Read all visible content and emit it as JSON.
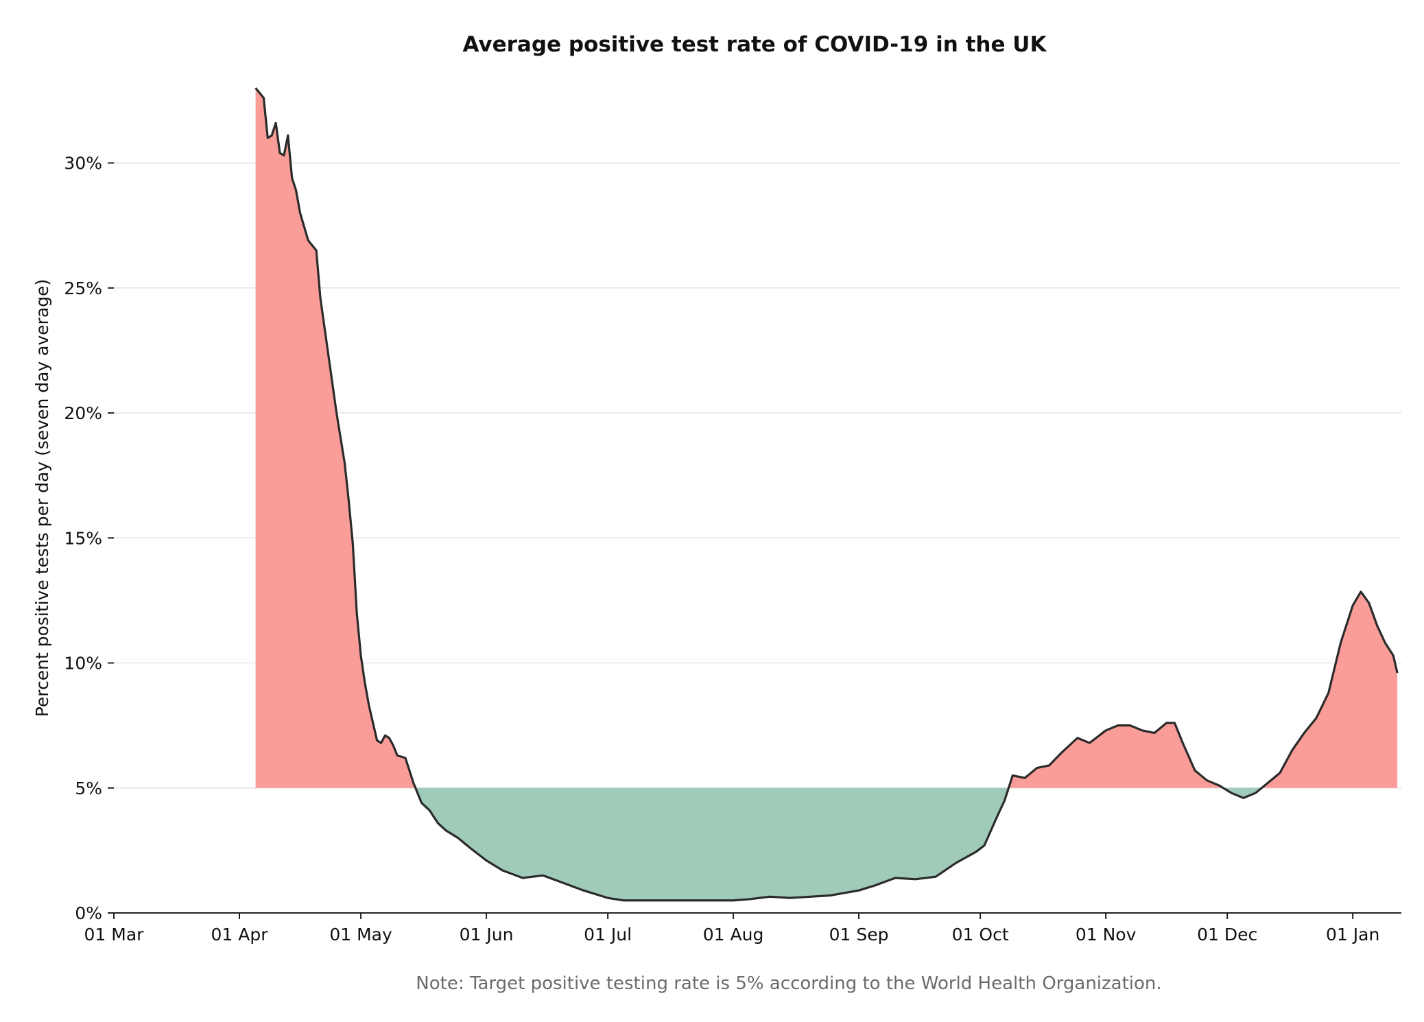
{
  "chart_data": {
    "type": "area",
    "title": "Average positive test rate of COVID-19 in the UK",
    "xlabel": "",
    "ylabel": "Percent positive tests per day (seven day average)",
    "note": "Note: Target positive testing rate is 5% according to the World Health Organization.",
    "threshold": 5,
    "ylim": [
      0,
      33.5
    ],
    "y_ticks": [
      0,
      5,
      10,
      15,
      20,
      25,
      30
    ],
    "y_tick_labels": [
      "0%",
      "5%",
      "10%",
      "15%",
      "20%",
      "25%",
      "30%"
    ],
    "x_ticks": [
      "2020-03-01",
      "2020-04-01",
      "2020-05-01",
      "2020-06-01",
      "2020-07-01",
      "2020-08-01",
      "2020-09-01",
      "2020-10-01",
      "2020-11-01",
      "2020-12-01",
      "2021-01-01"
    ],
    "x_tick_labels": [
      "01 Mar",
      "01 Apr",
      "01 May",
      "01 Jun",
      "01 Jul",
      "01 Aug",
      "01 Sep",
      "01 Oct",
      "01 Nov",
      "01 Dec",
      "01 Jan"
    ],
    "xlim": [
      "2020-03-01",
      "2021-01-13"
    ],
    "grid": "horizontal",
    "colors": {
      "above_threshold": "#fa9d99",
      "below_threshold": "#a0cbb8",
      "line": "#2b2b2b",
      "grid": "#e3e3e3"
    },
    "series": [
      {
        "x": [
          "2020-04-05",
          "2020-04-07",
          "2020-04-08",
          "2020-04-09",
          "2020-04-10",
          "2020-04-11",
          "2020-04-12",
          "2020-04-13",
          "2020-04-14",
          "2020-04-15",
          "2020-04-16",
          "2020-04-18",
          "2020-04-20",
          "2020-04-21",
          "2020-04-23",
          "2020-04-25",
          "2020-04-27",
          "2020-04-28",
          "2020-04-29",
          "2020-04-30",
          "2020-05-01",
          "2020-05-02",
          "2020-05-03",
          "2020-05-04",
          "2020-05-05",
          "2020-05-06",
          "2020-05-07",
          "2020-05-08",
          "2020-05-09",
          "2020-05-10",
          "2020-05-12",
          "2020-05-14",
          "2020-05-16",
          "2020-05-18",
          "2020-05-20",
          "2020-05-22",
          "2020-05-25",
          "2020-05-28",
          "2020-06-01",
          "2020-06-05",
          "2020-06-10",
          "2020-06-15",
          "2020-06-20",
          "2020-06-25",
          "2020-07-01",
          "2020-07-05",
          "2020-07-10",
          "2020-07-15",
          "2020-07-20",
          "2020-07-25",
          "2020-08-01",
          "2020-08-05",
          "2020-08-10",
          "2020-08-15",
          "2020-08-20",
          "2020-08-25",
          "2020-09-01",
          "2020-09-05",
          "2020-09-10",
          "2020-09-15",
          "2020-09-20",
          "2020-09-25",
          "2020-09-30",
          "2020-10-02",
          "2020-10-05",
          "2020-10-07",
          "2020-10-09",
          "2020-10-12",
          "2020-10-15",
          "2020-10-18",
          "2020-10-21",
          "2020-10-25",
          "2020-10-28",
          "2020-11-01",
          "2020-11-04",
          "2020-11-07",
          "2020-11-10",
          "2020-11-13",
          "2020-11-16",
          "2020-11-18",
          "2020-11-20",
          "2020-11-23",
          "2020-11-26",
          "2020-11-29",
          "2020-12-02",
          "2020-12-05",
          "2020-12-08",
          "2020-12-11",
          "2020-12-14",
          "2020-12-17",
          "2020-12-20",
          "2020-12-23",
          "2020-12-26",
          "2020-12-29",
          "2021-01-01",
          "2021-01-03",
          "2021-01-05",
          "2021-01-07",
          "2021-01-09",
          "2021-01-11",
          "2021-01-12"
        ],
        "y": [
          33.0,
          32.6,
          31.0,
          31.1,
          31.6,
          30.4,
          30.3,
          31.1,
          29.4,
          28.9,
          28.0,
          26.9,
          26.5,
          24.6,
          22.3,
          20.0,
          18.0,
          16.5,
          14.8,
          12.0,
          10.3,
          9.2,
          8.3,
          7.6,
          6.9,
          6.8,
          7.1,
          7.0,
          6.7,
          6.3,
          6.2,
          5.2,
          4.4,
          4.1,
          3.6,
          3.3,
          3.0,
          2.6,
          2.1,
          1.7,
          1.4,
          1.5,
          1.2,
          0.9,
          0.6,
          0.5,
          0.5,
          0.5,
          0.5,
          0.5,
          0.5,
          0.55,
          0.65,
          0.6,
          0.65,
          0.7,
          0.9,
          1.1,
          1.4,
          1.35,
          1.45,
          2.0,
          2.45,
          2.7,
          3.8,
          4.5,
          5.5,
          5.4,
          5.8,
          5.9,
          6.4,
          7.0,
          6.8,
          7.3,
          7.5,
          7.5,
          7.3,
          7.2,
          7.6,
          7.6,
          6.8,
          5.7,
          5.3,
          5.1,
          4.8,
          4.6,
          4.8,
          5.2,
          5.6,
          6.5,
          7.2,
          7.8,
          8.8,
          10.8,
          12.3,
          12.85,
          12.4,
          11.5,
          10.8,
          10.3,
          9.6
        ]
      }
    ]
  }
}
